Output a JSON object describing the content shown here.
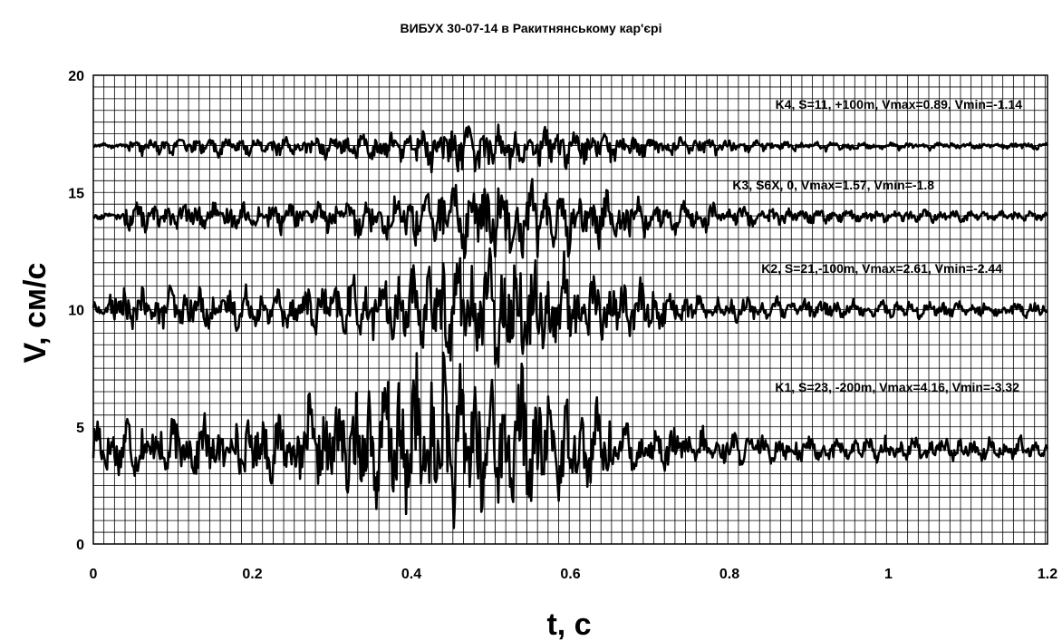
{
  "chart_data": {
    "type": "line",
    "title": "ВИБУХ 30-07-14 в Ракитнянському кар'єрі",
    "xlabel": "t, c",
    "ylabel": "V, см/с",
    "xlim": [
      0,
      1.2
    ],
    "ylim": [
      0,
      20
    ],
    "x_ticks": [
      "0",
      "0.2",
      "0.4",
      "0.6",
      "0.8",
      "1",
      "1.2"
    ],
    "y_ticks": [
      "0",
      "5",
      "10",
      "15",
      "20"
    ],
    "grid": true,
    "minor_x_step": 0.0133,
    "minor_y_step": 0.5,
    "line_color": "#000000",
    "series": [
      {
        "name": "K1",
        "annotation": "K1, S=23, -200m, Vmax=4.16, Vmin=-3.32",
        "baseline": 4,
        "vmax": 4.16,
        "vmin": -3.32,
        "active_start": 0.0,
        "active_end": 0.68,
        "peak_time": 0.45
      },
      {
        "name": "K2",
        "annotation": "K2, S=21,-100m, Vmax=2.61, Vmin=-2.44",
        "baseline": 10,
        "vmax": 2.61,
        "vmin": -2.44,
        "active_start": 0.02,
        "active_end": 0.72,
        "peak_time": 0.5
      },
      {
        "name": "K3",
        "annotation": "K3, S6X, 0, Vmax=1.57, Vmin=-1.8",
        "baseline": 14,
        "vmax": 1.57,
        "vmin": -1.8,
        "active_start": 0.04,
        "active_end": 0.78,
        "peak_time": 0.52
      },
      {
        "name": "K4",
        "annotation": "K4, S=11, +100m, Vmax=0.89, Vmin=-1.14",
        "baseline": 17,
        "vmax": 0.89,
        "vmin": -1.14,
        "active_start": 0.04,
        "active_end": 0.8,
        "peak_time": 0.5
      }
    ]
  }
}
